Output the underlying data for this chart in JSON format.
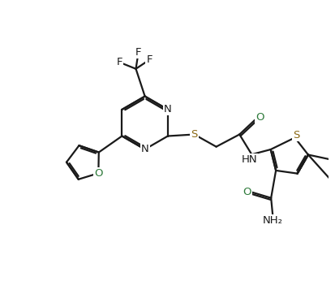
{
  "bg_color": "#ffffff",
  "line_color": "#1a1a1a",
  "color_N": "#1a1a1a",
  "color_O": "#2d7a3a",
  "color_S": "#8b6914",
  "color_F": "#1a1a1a",
  "bond_width": 1.6,
  "dbo": 0.055,
  "font_size": 9.5,
  "figsize": [
    4.13,
    3.78
  ],
  "dpi": 100,
  "xlim": [
    0,
    10
  ],
  "ylim": [
    0,
    9.5
  ]
}
